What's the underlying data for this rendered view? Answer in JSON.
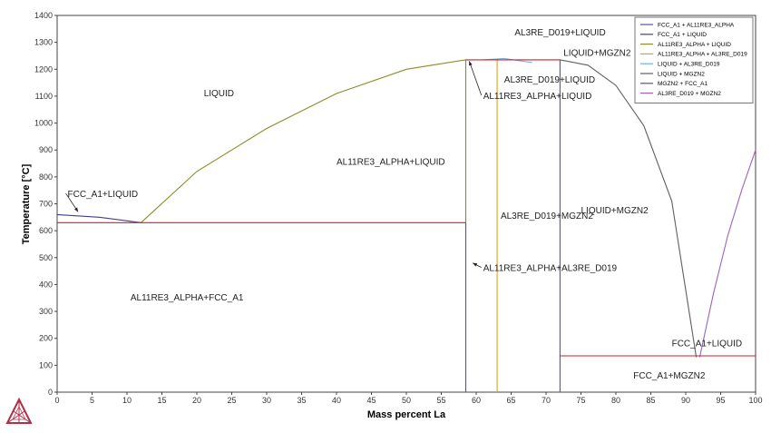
{
  "chart_data": {
    "type": "line",
    "xlabel": "Mass percent La",
    "ylabel": "Temperature [°C]",
    "xlim": [
      0,
      100
    ],
    "ylim": [
      0,
      1400
    ],
    "xticks": [
      0,
      5,
      10,
      15,
      20,
      25,
      30,
      35,
      40,
      45,
      50,
      55,
      60,
      65,
      70,
      75,
      80,
      85,
      90,
      95,
      100
    ],
    "yticks": [
      0,
      100,
      200,
      300,
      400,
      500,
      600,
      700,
      800,
      900,
      1000,
      1100,
      1200,
      1300,
      1400
    ],
    "legend_position": "top-right",
    "grid": false,
    "series": [
      {
        "name": "FCC_A1 + AL11RE3_ALPHA",
        "color": "#5a4fa8",
        "points": [
          [
            58.5,
            0
          ],
          [
            58.5,
            630
          ]
        ]
      },
      {
        "name": "FCC_A1 + LIQUID",
        "color": "#3d3d8f",
        "points": [
          [
            0,
            660
          ],
          [
            6,
            650
          ],
          [
            12,
            630
          ]
        ]
      },
      {
        "name": "AL11RE3_ALPHA + LIQUID",
        "color": "#8c8c2a",
        "points": [
          [
            12,
            630
          ],
          [
            20,
            820
          ],
          [
            30,
            980
          ],
          [
            40,
            1110
          ],
          [
            50,
            1200
          ],
          [
            58.5,
            1235
          ],
          [
            58.5,
            630
          ]
        ]
      },
      {
        "name": "AL11RE3_ALPHA + AL3RE_D019",
        "color": "#e0a020",
        "points": [
          [
            63,
            0
          ],
          [
            63,
            1235
          ]
        ]
      },
      {
        "name": "LIQUID + AL3RE_D019",
        "color": "#6fb4dc",
        "points": [
          [
            61,
            1235
          ],
          [
            64,
            1240
          ],
          [
            68,
            1225
          ]
        ]
      },
      {
        "name": "LIQUID + MGZN2",
        "color": "#5f5f5f",
        "points": [
          [
            72,
            1235
          ],
          [
            76,
            1215
          ],
          [
            80,
            1140
          ],
          [
            84,
            990
          ],
          [
            88,
            710
          ],
          [
            91.5,
            130
          ]
        ]
      },
      {
        "name": "MGZN2 + FCC_A1",
        "color": "#5050b0",
        "points": [
          [
            72,
            0
          ],
          [
            72,
            1235
          ]
        ]
      },
      {
        "name": "AL3RE_D019 + MGZN2",
        "color": "#a060c0",
        "points": [
          [
            92,
            130
          ],
          [
            94,
            370
          ],
          [
            96,
            580
          ],
          [
            98,
            750
          ],
          [
            100,
            900
          ]
        ]
      }
    ],
    "invariant_lines": [
      {
        "color": "#cc2030",
        "points": [
          [
            0,
            630
          ],
          [
            58.5,
            630
          ]
        ]
      },
      {
        "color": "#cc2030",
        "points": [
          [
            58.5,
            1235
          ],
          [
            72,
            1235
          ]
        ]
      },
      {
        "color": "#cc2030",
        "points": [
          [
            72,
            135
          ],
          [
            100,
            135
          ]
        ]
      }
    ],
    "annotations": [
      {
        "text": "LIQUID",
        "x": 21,
        "y": 1100
      },
      {
        "text": "AL11RE3_ALPHA+LIQUID",
        "x": 40,
        "y": 845
      },
      {
        "text": "FCC_A1+LIQUID",
        "x": 1.5,
        "y": 725,
        "arrow_to": [
          3,
          670
        ]
      },
      {
        "text": "AL11RE3_ALPHA+FCC_A1",
        "x": 10.5,
        "y": 340
      },
      {
        "text": "AL3RE_D019+LIQUID",
        "x": 65.5,
        "y": 1325
      },
      {
        "text": "LIQUID+MGZN2",
        "x": 72.5,
        "y": 1250
      },
      {
        "text": "AL3RE_D019+LIQUID",
        "x": 64,
        "y": 1150
      },
      {
        "text": "AL11RE3_ALPHA+LIQUID",
        "x": 61,
        "y": 1090,
        "arrow_to": [
          59,
          1230
        ]
      },
      {
        "text": "AL3RE_D019+MGZN2",
        "x": 63.5,
        "y": 645
      },
      {
        "text": "LIQUID+MGZN2",
        "x": 75,
        "y": 665
      },
      {
        "text": "AL11RE3_ALPHA+AL3RE_D019",
        "x": 61,
        "y": 450,
        "arrow_to": [
          59.5,
          480
        ]
      },
      {
        "text": "FCC_A1+LIQUID",
        "x": 88,
        "y": 170
      },
      {
        "text": "FCC_A1+MGZN2",
        "x": 82.5,
        "y": 50
      }
    ]
  },
  "colors": {
    "axis": "#444444",
    "text": "#222222",
    "background": "#ffffff"
  },
  "icons": {
    "logo": "thermo-calc-triangle-logo-icon"
  }
}
